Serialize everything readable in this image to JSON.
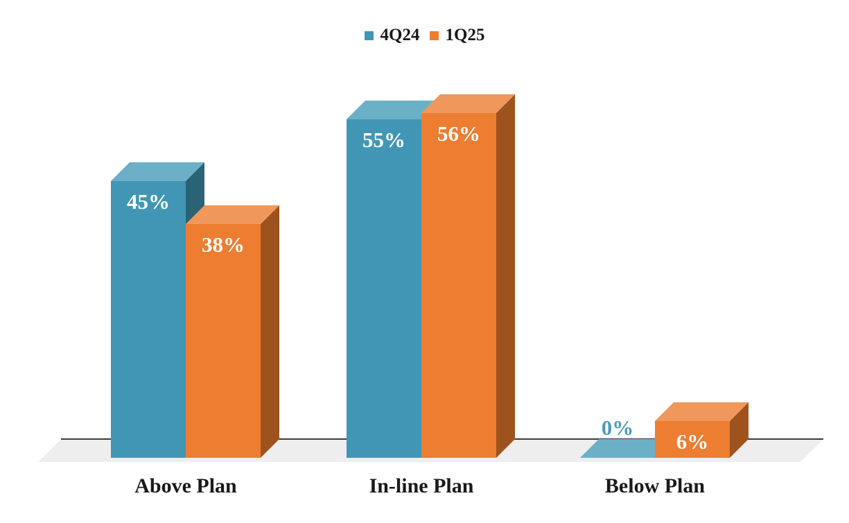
{
  "chart_data": {
    "type": "bar",
    "style": "3d-clustered",
    "title": "",
    "categories": [
      "Above Plan",
      "In-line Plan",
      "Below Plan"
    ],
    "series": [
      {
        "name": "4Q24",
        "values": [
          45,
          55,
          0
        ],
        "labels": [
          "45%",
          "55%",
          "0%"
        ],
        "colors": {
          "front": "#4296B5",
          "top": "#6CB0C7",
          "side": "#2A6375"
        },
        "label_color_inside": "#FFFFFF",
        "zero_label_color": "#4A9CBB"
      },
      {
        "name": "1Q25",
        "values": [
          38,
          56,
          6
        ],
        "labels": [
          "38%",
          "56%",
          "6%"
        ],
        "colors": {
          "front": "#ED7D31",
          "top": "#F0975B",
          "side": "#9E531F"
        },
        "label_color_inside": "#FFFFFF"
      }
    ],
    "value_unit": "%",
    "legend_position": "top",
    "gridlines": false,
    "y_axis_visible": false,
    "x_axis_line": true,
    "axis_line_color": "#3B3B3B",
    "floor_color": "#EEEEEE",
    "text_color": "#1A1A1A",
    "background": "#FFFFFF"
  }
}
